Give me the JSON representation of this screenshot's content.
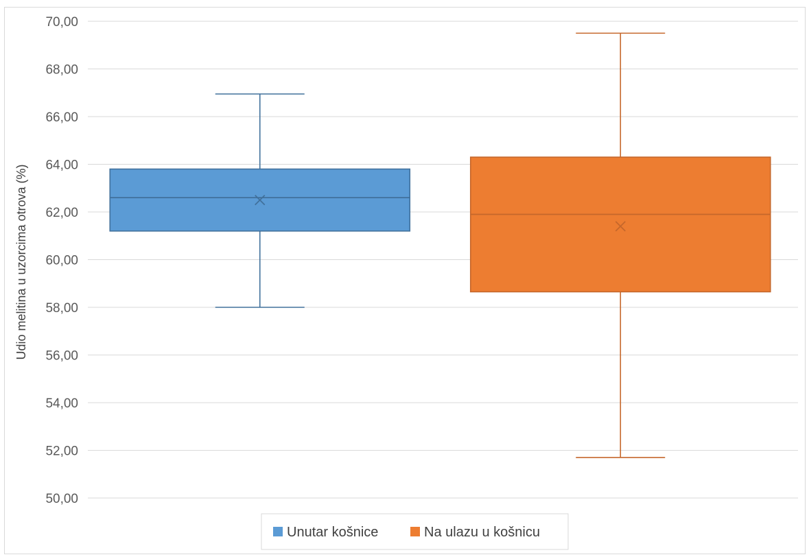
{
  "chart_data": {
    "type": "boxplot",
    "title": "",
    "xlabel": "",
    "ylabel": "Udio melitina u uzorcima otrova (%)",
    "ylim": [
      50,
      70
    ],
    "ytick_step": 2,
    "ytick_labels": [
      "50,00",
      "52,00",
      "54,00",
      "56,00",
      "58,00",
      "60,00",
      "62,00",
      "64,00",
      "66,00",
      "68,00",
      "70,00"
    ],
    "grid": "horizontal",
    "legend_position": "bottom",
    "series": [
      {
        "name": "Unutar košnice",
        "color": "#5b9bd5",
        "edge_color": "#41719c",
        "min": 58.0,
        "q1": 61.2,
        "median": 62.6,
        "q3": 63.8,
        "max": 66.95,
        "mean": 62.5
      },
      {
        "name": "Na ulazu u košnicu",
        "color": "#ed7d31",
        "edge_color": "#c5672b",
        "min": 51.7,
        "q1": 58.65,
        "median": 61.9,
        "q3": 64.3,
        "max": 69.5,
        "mean": 61.4
      }
    ]
  }
}
